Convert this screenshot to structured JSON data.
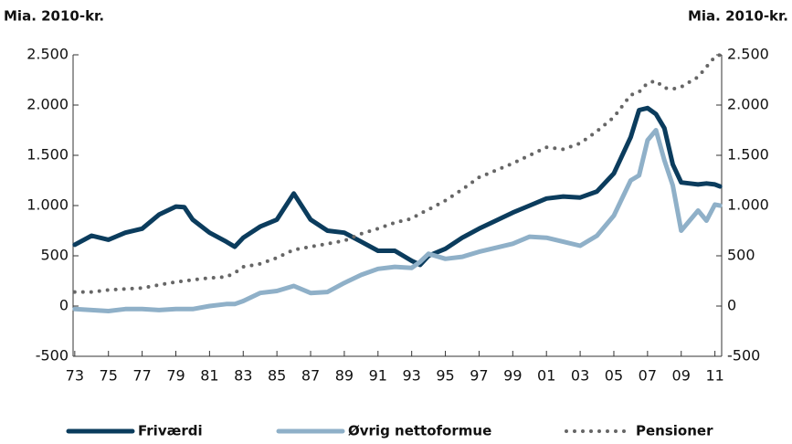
{
  "chart_data": {
    "type": "line",
    "y_label": "Mia. 2010-kr.",
    "y2_label": "Mia. 2010-kr.",
    "x": [
      1973,
      1974,
      1975,
      1976,
      1977,
      1978,
      1979,
      1979.5,
      1980,
      1981,
      1982,
      1982.5,
      1983,
      1984,
      1985,
      1986,
      1987,
      1988,
      1989,
      1990,
      1991,
      1992,
      1993,
      1993.5,
      1994,
      1995,
      1996,
      1997,
      1998,
      1999,
      2000,
      2001,
      2002,
      2003,
      2004,
      2005,
      2006,
      2006.5,
      2007,
      2007.5,
      2008,
      2008.5,
      2009,
      2010,
      2010.5,
      2011,
      2011.3
    ],
    "series": [
      {
        "name": "Friværdi",
        "color": "#0b3c5d",
        "line_style": "solid",
        "values": [
          610,
          700,
          660,
          730,
          770,
          910,
          990,
          985,
          860,
          730,
          640,
          590,
          680,
          790,
          860,
          1120,
          860,
          750,
          730,
          640,
          550,
          550,
          450,
          410,
          500,
          570,
          680,
          770,
          850,
          930,
          1000,
          1070,
          1090,
          1080,
          1140,
          1320,
          1680,
          1950,
          1970,
          1910,
          1770,
          1410,
          1230,
          1210,
          1220,
          1210,
          1190
        ]
      },
      {
        "name": "Øvrig nettoformue",
        "color": "#8fb0c8",
        "line_style": "solid",
        "values": [
          -30,
          -40,
          -50,
          -30,
          -30,
          -40,
          -30,
          -30,
          -30,
          0,
          20,
          20,
          50,
          130,
          150,
          200,
          130,
          140,
          230,
          310,
          370,
          390,
          380,
          440,
          520,
          470,
          490,
          540,
          580,
          620,
          690,
          680,
          640,
          600,
          700,
          900,
          1250,
          1300,
          1650,
          1750,
          1450,
          1200,
          750,
          950,
          850,
          1010,
          1000
        ]
      },
      {
        "name": "Pensioner",
        "color": "#666666",
        "line_style": "dotted",
        "values": [
          140,
          140,
          160,
          170,
          180,
          210,
          240,
          250,
          260,
          280,
          290,
          330,
          390,
          420,
          480,
          560,
          590,
          620,
          650,
          720,
          770,
          830,
          870,
          920,
          960,
          1050,
          1160,
          1280,
          1350,
          1420,
          1500,
          1580,
          1560,
          1620,
          1740,
          1880,
          2100,
          2130,
          2220,
          2240,
          2170,
          2160,
          2180,
          2280,
          2380,
          2480,
          2500
        ]
      }
    ],
    "xlim": [
      1972.9,
      2011.4
    ],
    "xticks": [
      {
        "value": 1973,
        "label": "73"
      },
      {
        "value": 1975,
        "label": "75"
      },
      {
        "value": 1977,
        "label": "77"
      },
      {
        "value": 1979,
        "label": "79"
      },
      {
        "value": 1981,
        "label": "81"
      },
      {
        "value": 1983,
        "label": "83"
      },
      {
        "value": 1985,
        "label": "85"
      },
      {
        "value": 1987,
        "label": "87"
      },
      {
        "value": 1989,
        "label": "89"
      },
      {
        "value": 1991,
        "label": "91"
      },
      {
        "value": 1993,
        "label": "93"
      },
      {
        "value": 1995,
        "label": "95"
      },
      {
        "value": 1997,
        "label": "97"
      },
      {
        "value": 1999,
        "label": "99"
      },
      {
        "value": 2001,
        "label": "01"
      },
      {
        "value": 2003,
        "label": "03"
      },
      {
        "value": 2005,
        "label": "05"
      },
      {
        "value": 2007,
        "label": "07"
      },
      {
        "value": 2009,
        "label": "09"
      },
      {
        "value": 2011,
        "label": "11"
      }
    ],
    "ylim": [
      -500,
      2500
    ],
    "yticks": [
      -500,
      0,
      500,
      {
        "value": 1000,
        "label": "1.000"
      },
      {
        "value": 1500,
        "label": "1.500"
      },
      {
        "value": 2000,
        "label": "2.000"
      },
      {
        "value": 2500,
        "label": "2.500"
      }
    ],
    "y2lim": [
      -500,
      2500
    ],
    "y2ticks": [
      -500,
      0,
      500,
      {
        "value": 1000,
        "label": "1.000"
      },
      {
        "value": 1500,
        "label": "1.500"
      },
      {
        "value": 2000,
        "label": "2.000"
      },
      {
        "value": 2500,
        "label": "2.500"
      }
    ],
    "grid": false,
    "legend": "bottom"
  }
}
